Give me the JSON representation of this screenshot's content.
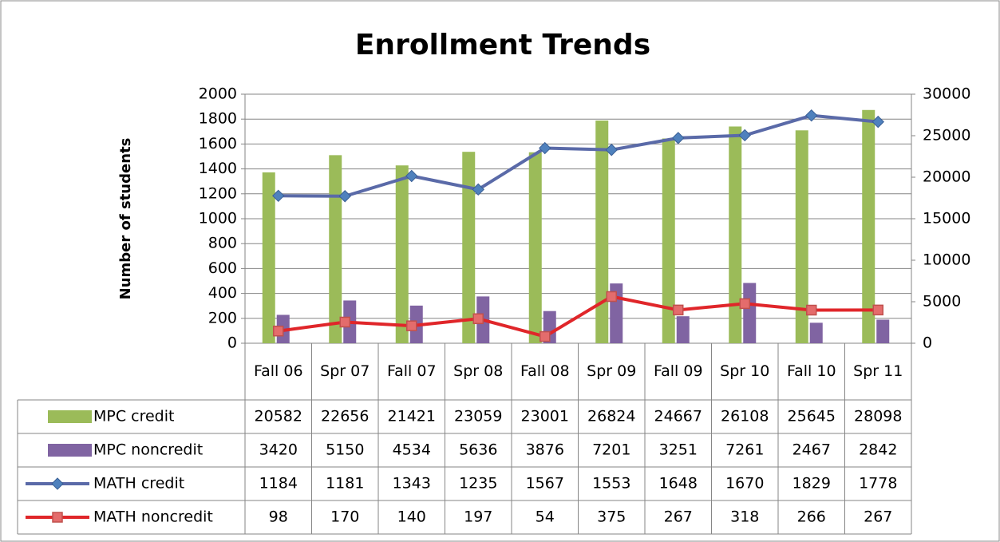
{
  "chart_data": {
    "type": "bar",
    "title": "Enrollment Trends",
    "y_label": "Number of students",
    "categories": [
      "Fall 06",
      "Spr 07",
      "Fall 07",
      "Spr 08",
      "Fall 08",
      "Spr 09",
      "Fall 09",
      "Spr 10",
      "Fall 10",
      "Spr 11"
    ],
    "ylim": [
      0,
      2000
    ],
    "yticks": [
      0,
      200,
      400,
      600,
      800,
      1000,
      1200,
      1400,
      1600,
      1800,
      2000
    ],
    "y2lim": [
      0,
      30000
    ],
    "y2ticks": [
      0,
      5000,
      10000,
      15000,
      20000,
      25000,
      30000
    ],
    "grid": true,
    "series": [
      {
        "name": "MPC credit",
        "type": "bar",
        "axis": "y2",
        "color": "#9bbb59",
        "values": [
          20582,
          22656,
          21421,
          23059,
          23001,
          26824,
          24667,
          26108,
          25645,
          28098
        ]
      },
      {
        "name": "MPC noncredit",
        "type": "bar",
        "axis": "y2",
        "color": "#8064a2",
        "values": [
          3420,
          5150,
          4534,
          5636,
          3876,
          7201,
          3251,
          7261,
          2467,
          2842
        ]
      },
      {
        "name": "MATH credit",
        "type": "line",
        "color": "#5a6aa8",
        "values": [
          1184,
          1181,
          1343,
          1235,
          1567,
          1553,
          1648,
          1670,
          1829,
          1778
        ]
      },
      {
        "name": "MATH noncredit",
        "type": "line",
        "color": "#e0262a",
        "values": [
          98,
          170,
          140,
          197,
          54,
          375,
          267,
          318,
          266,
          267
        ]
      }
    ]
  }
}
